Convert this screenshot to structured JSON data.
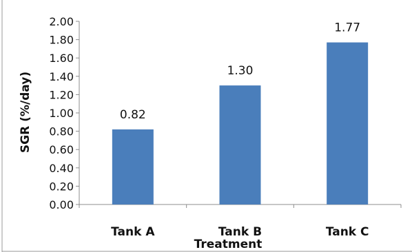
{
  "chart_data": {
    "type": "bar",
    "categories": [
      "Tank A",
      "Tank B",
      "Tank C"
    ],
    "values": [
      0.82,
      1.3,
      1.77
    ],
    "data_labels": [
      "0.82",
      "1.30",
      "1.77"
    ],
    "xlabel": "Treatment",
    "ylabel": "SGR (%/day)",
    "ylim": [
      0,
      2
    ],
    "yticks": [
      "0.00",
      "0.20",
      "0.40",
      "0.60",
      "0.80",
      "1.00",
      "1.20",
      "1.40",
      "1.60",
      "1.80",
      "2.00"
    ],
    "grid": false,
    "legend": "none",
    "bar_color": "#4a7ebb"
  }
}
